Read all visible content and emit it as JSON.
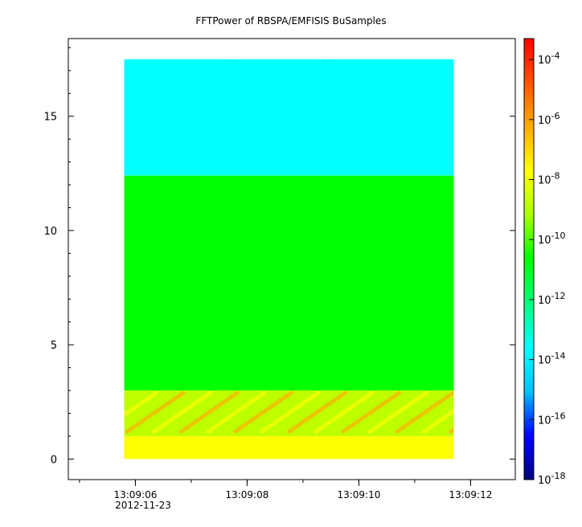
{
  "chart_data": {
    "type": "heatmap",
    "title": "FFTPower of RBSPA/EMFISIS  BuSamples",
    "xlabel": "",
    "ylabel": "",
    "x_ticks": [
      "13:09:06",
      "13:09:08",
      "13:09:10",
      "13:09:12"
    ],
    "x_tick_date": "2012-11-23",
    "x_range": [
      "13:09:04.8",
      "13:09:12.8"
    ],
    "y_ticks": [
      "0",
      "5",
      "10",
      "15"
    ],
    "y_range": [
      -0.9,
      18.4
    ],
    "data_extent": {
      "x": [
        "13:09:05.8",
        "13:09:11.7"
      ],
      "y": [
        0,
        17.5
      ]
    },
    "bands": [
      {
        "y": [
          12.4,
          17.5
        ],
        "log10_power": -13
      },
      {
        "y": [
          3.0,
          12.4
        ],
        "log10_power": -10
      },
      {
        "y": [
          1.0,
          3.0
        ],
        "log10_power": -9,
        "note": "descending tone streaks up to -6"
      },
      {
        "y": [
          0,
          1.0
        ],
        "log10_power": -8
      }
    ],
    "colorbar": {
      "scale": "log",
      "range": [
        -18,
        -3.3
      ],
      "tick_exponents": [
        "-4",
        "-6",
        "-8",
        "-10",
        "-12",
        "-14",
        "-16",
        "-18"
      ],
      "tick_base": "10",
      "colors": [
        "#00007f",
        "#0000ff",
        "#00bfff",
        "#00ffff",
        "#00ff80",
        "#00ff00",
        "#aaff00",
        "#ffff00",
        "#ffaa00",
        "#ff5500",
        "#ff0000"
      ]
    }
  }
}
